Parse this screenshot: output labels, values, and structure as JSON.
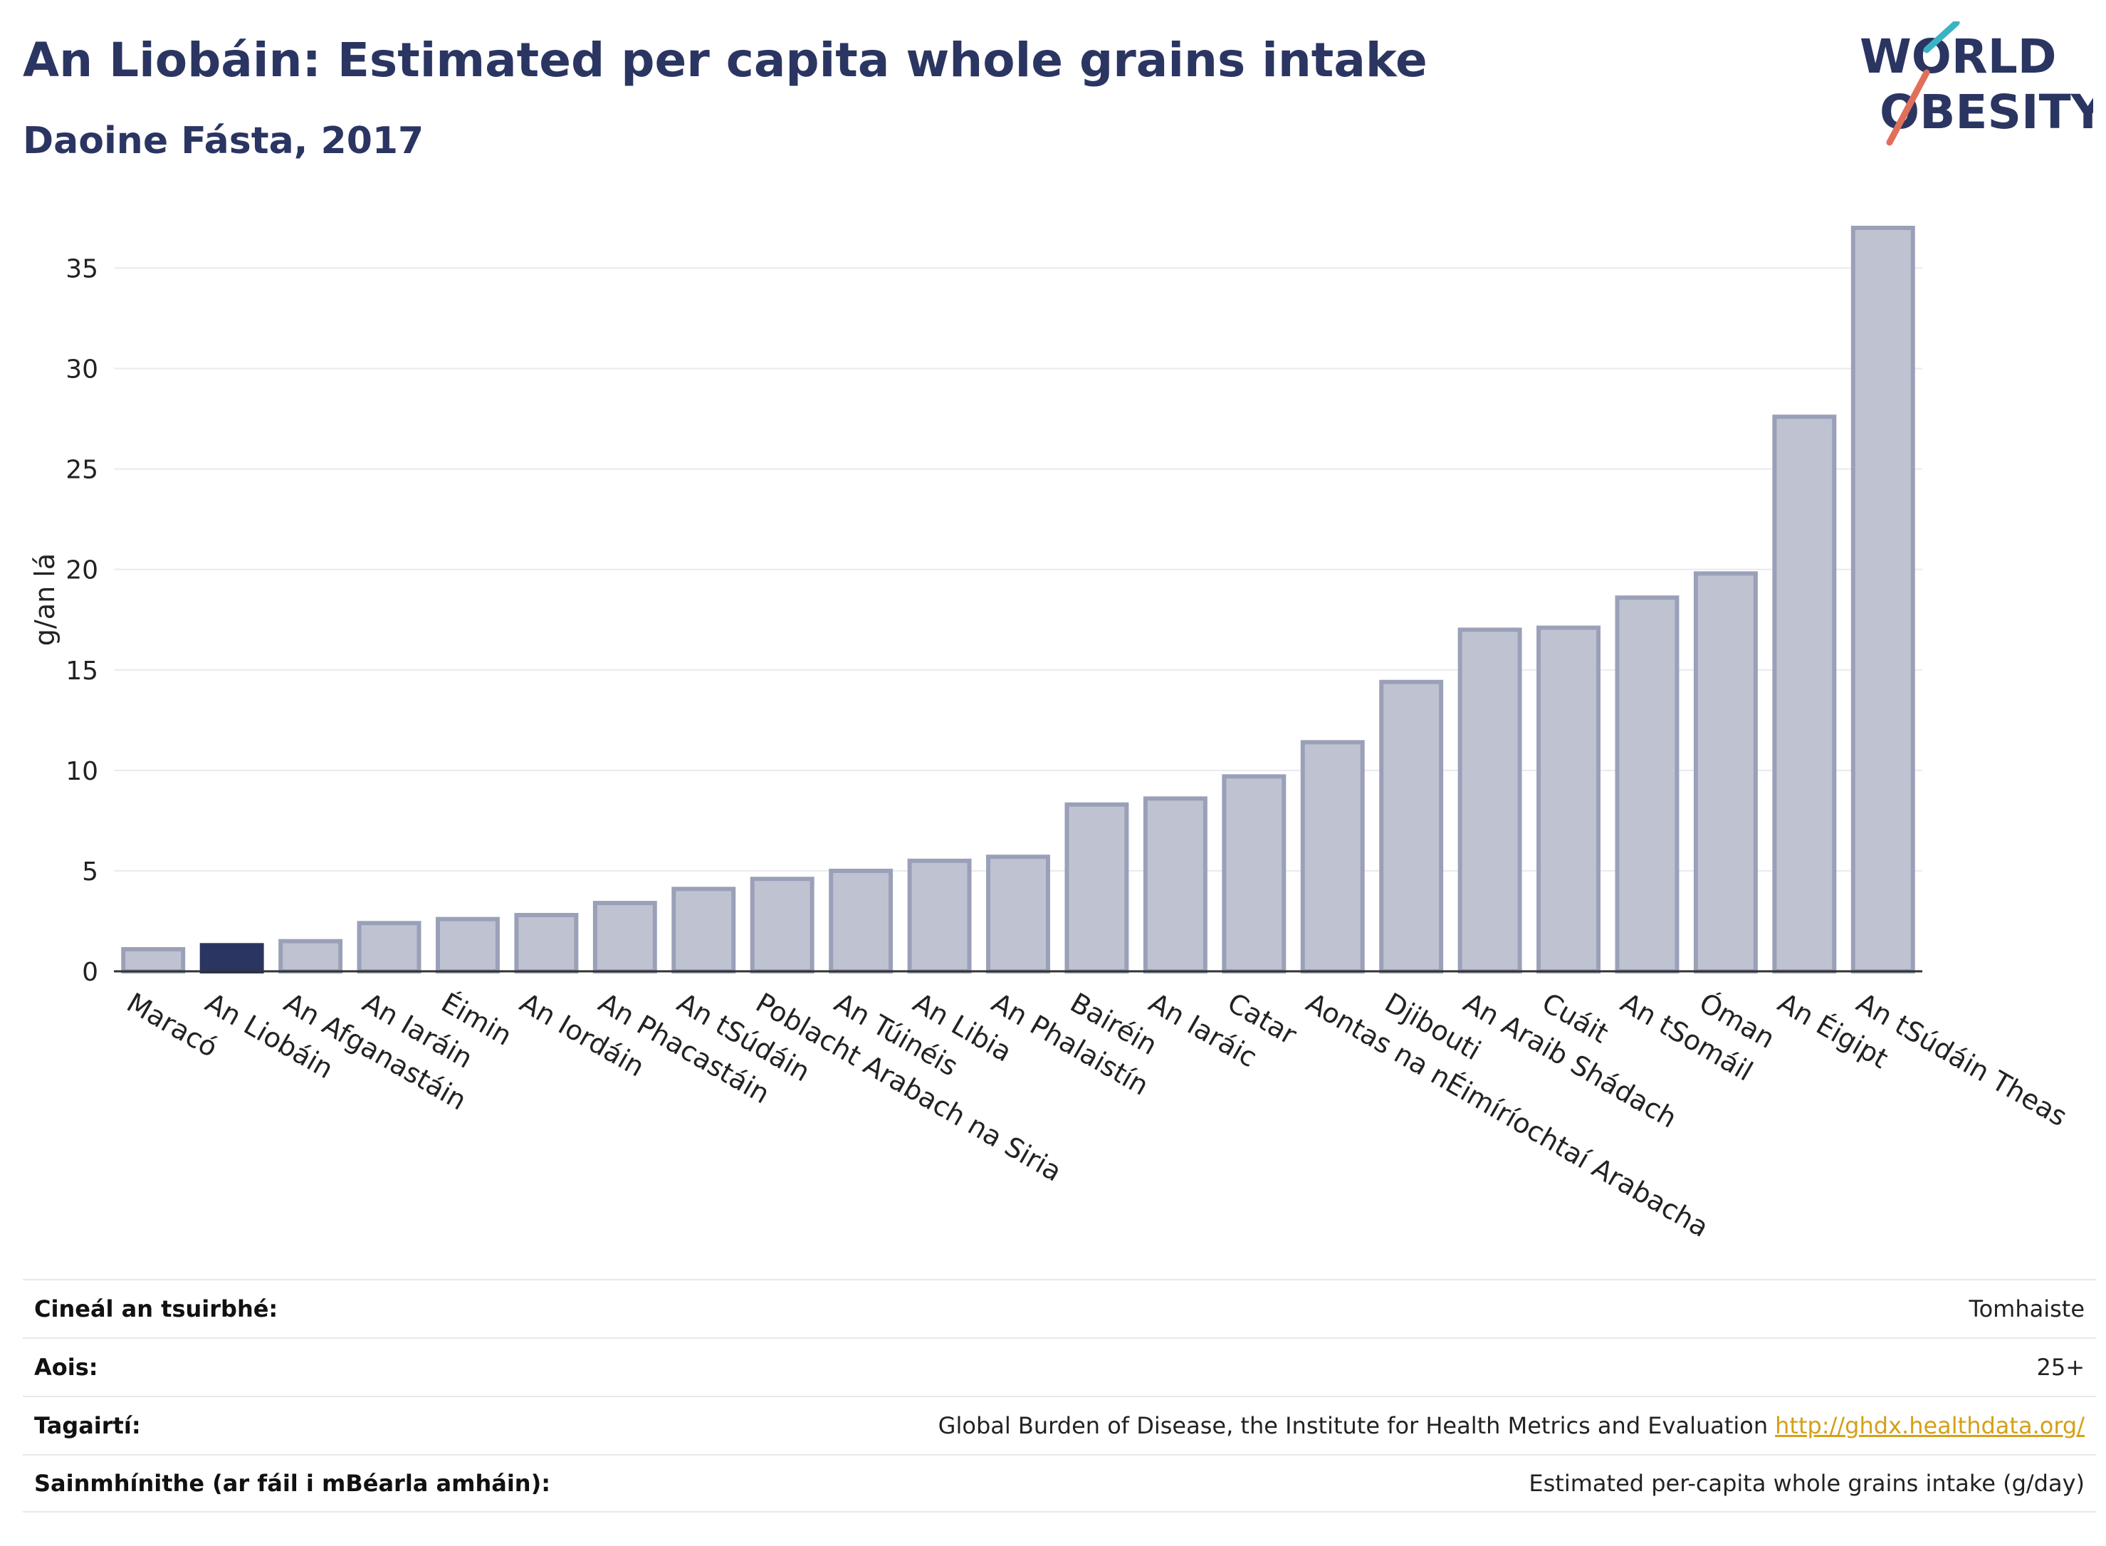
{
  "header": {
    "title": "An Liobáin: Estimated per capita whole grains intake",
    "subtitle": "Daoine Fásta, 2017"
  },
  "logo": {
    "line1": "WORLD",
    "line2": "OBESITY"
  },
  "colors": {
    "accent": "#2b3562",
    "bar": "#bfc3d1",
    "bar_stroke": "#9aa0b8",
    "highlight": "#2b3562"
  },
  "chart_data": {
    "type": "bar",
    "ylabel": "g/an lá",
    "ylim": [
      0,
      37
    ],
    "yticks": [
      0,
      5,
      10,
      15,
      20,
      25,
      30,
      35
    ],
    "grid": true,
    "highlight": "An Liobáin",
    "categories": [
      "Maracó",
      "An Liobáin",
      "An Afganastáin",
      "An Iaráin",
      "Éimin",
      "An Iordáin",
      "An Phacastáin",
      "An tSúdáin",
      "Poblacht Arabach na Siria",
      "An Túinéis",
      "An Libia",
      "An Phalaistín",
      "Bairéin",
      "An Iaráic",
      "Catar",
      "Aontas na nÉimíríochtaí Arabacha",
      "Djibouti",
      "An Araib Shádach",
      "Cuáit",
      "An tSomáil",
      "Óman",
      "An Éigipt",
      "An tSúdáin Theas"
    ],
    "values": [
      1.1,
      1.3,
      1.5,
      2.4,
      2.6,
      2.8,
      3.4,
      4.1,
      4.6,
      5.0,
      5.5,
      5.7,
      8.3,
      8.6,
      9.7,
      11.4,
      14.4,
      17.0,
      17.1,
      18.6,
      19.8,
      27.6,
      37.0
    ]
  },
  "meta": [
    {
      "key": "Cineál an tsuirbhé:",
      "value": "Tomhaiste"
    },
    {
      "key": "Aois:",
      "value": "25+"
    },
    {
      "key": "Tagairtí:",
      "value": "Global Burden of Disease, the Institute for Health Metrics and Evaluation",
      "link": "http://ghdx.healthdata.org/"
    },
    {
      "key": "Sainmhínithe (ar fáil i mBéarla amháin):",
      "value": "Estimated per-capita whole grains intake (g/day)"
    }
  ]
}
